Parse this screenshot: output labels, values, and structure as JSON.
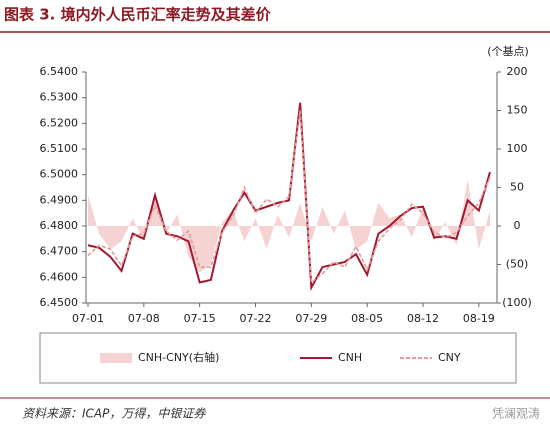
{
  "chart_data": {
    "type": "line",
    "title": "图表 3. 境内外人民币汇率走势及其差价",
    "y2_label": "(个基点)",
    "source": "资料来源：ICAP，万得，中银证券",
    "watermark": "凭澜观涛",
    "categories": [
      "07-01",
      null,
      null,
      null,
      null,
      "07-08",
      null,
      null,
      null,
      null,
      "07-15",
      null,
      null,
      null,
      null,
      "07-22",
      null,
      null,
      null,
      null,
      "07-29",
      null,
      null,
      null,
      null,
      "08-05",
      null,
      null,
      null,
      null,
      "08-12",
      null,
      null,
      null,
      null,
      "08-19",
      null
    ],
    "series": [
      {
        "name": "CNH-CNY(右轴)",
        "color": "#f6d3d3",
        "style": "area",
        "axis": "y2",
        "values": [
          40,
          -10,
          -30,
          -20,
          10,
          -20,
          40,
          -10,
          15,
          -40,
          -60,
          -50,
          5,
          20,
          -20,
          10,
          -30,
          15,
          -15,
          30,
          -20,
          25,
          -10,
          20,
          -30,
          -20,
          30,
          10,
          15,
          -15,
          25,
          -20,
          5,
          -25,
          60,
          -30,
          20
        ]
      },
      {
        "name": "CNH",
        "color": "#a3172f",
        "style": "line",
        "values": [
          6.4725,
          6.4715,
          6.468,
          6.4625,
          6.477,
          6.475,
          6.492,
          6.477,
          6.476,
          6.474,
          6.458,
          6.459,
          6.478,
          6.486,
          6.493,
          6.486,
          6.4875,
          6.489,
          6.49,
          6.528,
          6.456,
          6.464,
          6.465,
          6.466,
          6.469,
          6.461,
          6.477,
          6.48,
          6.484,
          6.487,
          6.4875,
          6.4755,
          6.476,
          6.475,
          6.49,
          6.486,
          6.501
        ]
      },
      {
        "name": "CNY",
        "color": "#e49a9a",
        "style": "dashed",
        "values": [
          6.4685,
          6.4725,
          6.471,
          6.4645,
          6.476,
          6.477,
          6.488,
          6.478,
          6.4745,
          6.478,
          6.464,
          6.464,
          6.4775,
          6.484,
          6.495,
          6.485,
          6.4905,
          6.4875,
          6.4915,
          6.525,
          6.458,
          6.4615,
          6.466,
          6.464,
          6.472,
          6.463,
          6.474,
          6.479,
          6.4825,
          6.4885,
          6.485,
          6.4775,
          6.4755,
          6.4775,
          6.484,
          6.489,
          6.499
        ]
      }
    ],
    "ylim": [
      6.45,
      6.54
    ],
    "yticks": [
      {
        "value": 6.45,
        "label": "6.4500"
      },
      {
        "value": 6.46,
        "label": "6.4600"
      },
      {
        "value": 6.47,
        "label": "6.4700"
      },
      {
        "value": 6.48,
        "label": "6.4800"
      },
      {
        "value": 6.49,
        "label": "6.4900"
      },
      {
        "value": 6.5,
        "label": "6.5000"
      },
      {
        "value": 6.51,
        "label": "6.5100"
      },
      {
        "value": 6.52,
        "label": "6.5200"
      },
      {
        "value": 6.53,
        "label": "6.5300"
      },
      {
        "value": 6.54,
        "label": "6.5400"
      }
    ],
    "y2lim": [
      -100,
      200
    ],
    "y2ticks": [
      {
        "value": -100,
        "label": "(100)"
      },
      {
        "value": -50,
        "label": "(50)"
      },
      0,
      50,
      100,
      150,
      200
    ],
    "grid": false
  }
}
